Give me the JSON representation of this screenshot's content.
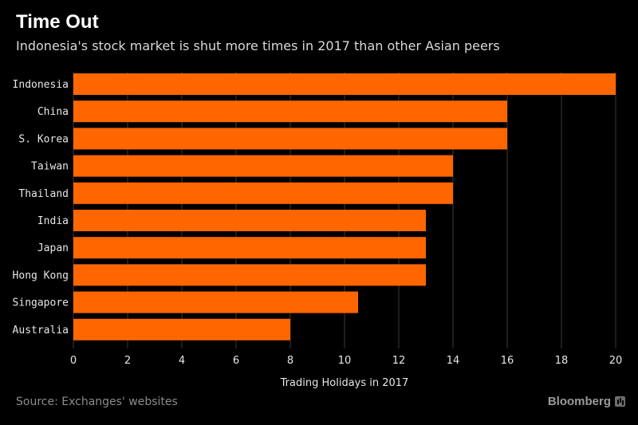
{
  "title": "Time Out",
  "subtitle": "Indonesia's stock market is shut more times in 2017 than other Asian peers",
  "source": "Source: Exchanges' websites",
  "brand": "Bloomberg",
  "brand_icon": "bloomberg-chart-icon",
  "colors": {
    "bar": "#ff6600",
    "background": "#000000",
    "grid": "#3a3a3a"
  },
  "chart_data": {
    "type": "bar",
    "orientation": "horizontal",
    "categories": [
      "Indonesia",
      "China",
      "S. Korea",
      "Taiwan",
      "Thailand",
      "India",
      "Japan",
      "Hong Kong",
      "Singapore",
      "Australia"
    ],
    "values": [
      20,
      16,
      16,
      14,
      14,
      13,
      13,
      13,
      10.5,
      8
    ],
    "xlabel": "Trading Holidays in 2017",
    "ylabel": "",
    "xlim": [
      0,
      20
    ],
    "xticks": [
      0,
      2,
      4,
      6,
      8,
      10,
      12,
      14,
      16,
      18,
      20
    ],
    "grid": "vertical"
  }
}
